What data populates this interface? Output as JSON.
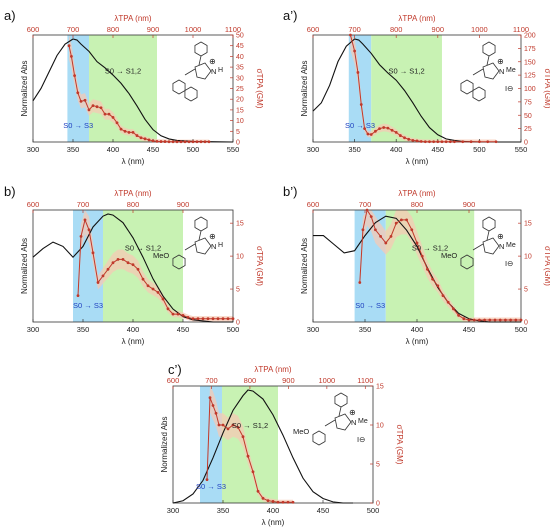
{
  "figure": {
    "title": "",
    "colors": {
      "absorption": "#111111",
      "tpa": "#c0392b",
      "tpa_band": "#f6c9b4",
      "s3_region": "#a9dcf5",
      "s12_region": "#c8f2b3",
      "s3_text": "#1f3fbf",
      "s12_text": "#222222",
      "guide_line": "#e8a7a7"
    }
  },
  "chart_data": [
    {
      "id": "a",
      "type": "line",
      "panel_label": "a)",
      "top_axis_label": "λTPA (nm)",
      "xlabel": "λ (nm)",
      "ylabel": "Normalized Abs",
      "y2label": "σTPA (GM)",
      "xlim": [
        300,
        550
      ],
      "x_ticks": [
        300,
        350,
        400,
        450,
        500,
        550
      ],
      "top_ticks": [
        600,
        700,
        800,
        900,
        1000,
        1100
      ],
      "ylim2": [
        0,
        50
      ],
      "y2_ticks": [
        0,
        5,
        10,
        15,
        20,
        25,
        30,
        35,
        40,
        45,
        50
      ],
      "regions": {
        "s3": [
          343,
          370
        ],
        "s12": [
          370,
          455
        ]
      },
      "region_labels": {
        "s3": "S0 → S3",
        "s12": "S0 → S1,2"
      },
      "absorption": {
        "x": [
          300,
          310,
          320,
          330,
          340,
          350,
          355,
          360,
          370,
          380,
          390,
          400,
          410,
          420,
          430,
          440,
          450,
          460,
          470,
          480,
          500,
          550
        ],
        "y": [
          0.4,
          0.52,
          0.68,
          0.84,
          0.95,
          1.0,
          0.99,
          0.95,
          0.88,
          0.78,
          0.72,
          0.65,
          0.57,
          0.47,
          0.35,
          0.22,
          0.12,
          0.06,
          0.03,
          0.015,
          0.005,
          0.0
        ]
      },
      "tpa": {
        "x": [
          345,
          348,
          352,
          356,
          360,
          365,
          370,
          375,
          380,
          385,
          390,
          395,
          400,
          405,
          410,
          415,
          420,
          425,
          430,
          435,
          440,
          445,
          450,
          455,
          460,
          465,
          470,
          475,
          480,
          485,
          490,
          495,
          500,
          505,
          510,
          515,
          520
        ],
        "y": [
          45,
          40,
          31,
          23,
          19,
          19.5,
          15,
          17,
          16.5,
          16,
          13,
          13,
          11.5,
          9,
          6,
          5,
          4.5,
          4.5,
          3,
          2,
          1.5,
          1,
          0.5,
          0.3,
          0.2,
          0.2,
          0.1,
          0.1,
          0.1,
          0.1,
          0.1,
          0.1,
          0.1,
          0.1,
          0.1,
          0.1,
          0.1
        ]
      },
      "molecule": {
        "nh": "N",
        "h": "H",
        "charge": "⊕",
        "counterion": ""
      }
    },
    {
      "id": "a2",
      "type": "line",
      "panel_label": "a’)",
      "top_axis_label": "λTPA (nm)",
      "xlabel": "λ (nm)",
      "ylabel": "Normalized Abs",
      "y2label": "σTPA (GM)",
      "xlim": [
        300,
        550
      ],
      "x_ticks": [
        300,
        350,
        400,
        450,
        500,
        550
      ],
      "top_ticks": [
        600,
        700,
        800,
        900,
        1000,
        1100
      ],
      "ylim2": [
        0,
        200
      ],
      "y2_ticks": [
        0,
        25,
        50,
        75,
        100,
        125,
        150,
        175,
        200
      ],
      "regions": {
        "s3": [
          343,
          370
        ],
        "s12": [
          370,
          455
        ]
      },
      "region_labels": {
        "s3": "S0 → S3",
        "s12": "S0 → S1,2"
      },
      "absorption": {
        "x": [
          300,
          310,
          320,
          330,
          340,
          350,
          355,
          360,
          370,
          380,
          390,
          400,
          410,
          420,
          430,
          440,
          450,
          460,
          470,
          480,
          500,
          550
        ],
        "y": [
          0.3,
          0.38,
          0.55,
          0.78,
          0.93,
          1.0,
          0.99,
          0.95,
          0.86,
          0.75,
          0.67,
          0.6,
          0.5,
          0.38,
          0.25,
          0.14,
          0.07,
          0.03,
          0.015,
          0.005,
          0.0,
          0.0
        ]
      },
      "tpa": {
        "x": [
          345,
          350,
          354,
          358,
          362,
          366,
          370,
          375,
          380,
          385,
          390,
          395,
          400,
          405,
          410,
          415,
          420,
          425,
          430,
          435,
          440,
          445,
          450,
          455,
          460,
          465,
          470,
          480,
          490,
          500,
          510,
          520
        ],
        "y": [
          200,
          170,
          130,
          70,
          25,
          15,
          14,
          20,
          25,
          27,
          26,
          22,
          18,
          12,
          8,
          5,
          3,
          2,
          1,
          0.5,
          0.5,
          0.5,
          0.5,
          0.5,
          0.5,
          0.5,
          0.5,
          0.5,
          0.5,
          0.5,
          0.5,
          0.5
        ]
      },
      "molecule": {
        "nh": "N",
        "h": "Me",
        "charge": "⊕",
        "counterion": "I⊖"
      }
    },
    {
      "id": "b",
      "type": "line",
      "panel_label": "b)",
      "top_axis_label": "λTPA (nm)",
      "xlabel": "λ (nm)",
      "ylabel": "Normalized Abs",
      "y2label": "σTPA (GM)",
      "xlim": [
        300,
        500
      ],
      "x_ticks": [
        300,
        350,
        400,
        450,
        500
      ],
      "top_ticks": [
        600,
        700,
        800,
        900
      ],
      "ylim2": [
        0,
        17
      ],
      "y2_ticks": [
        0,
        5,
        10,
        15
      ],
      "regions": {
        "s3": [
          340,
          370
        ],
        "s12": [
          370,
          450
        ]
      },
      "region_labels": {
        "s3": "S0 → S3",
        "s12": "S0 → S1,2"
      },
      "absorption": {
        "x": [
          300,
          310,
          320,
          330,
          340,
          350,
          360,
          370,
          375,
          380,
          390,
          400,
          410,
          420,
          430,
          440,
          450,
          460,
          470,
          480,
          500
        ],
        "y": [
          0.6,
          0.68,
          0.74,
          0.7,
          0.6,
          0.7,
          0.88,
          0.98,
          1.0,
          0.99,
          0.92,
          0.78,
          0.6,
          0.4,
          0.24,
          0.12,
          0.05,
          0.02,
          0.01,
          0.0,
          0.0
        ]
      },
      "tpa": {
        "x": [
          345,
          348,
          352,
          356,
          360,
          365,
          370,
          375,
          380,
          385,
          390,
          395,
          400,
          405,
          410,
          415,
          420,
          425,
          430,
          435,
          440,
          445,
          450,
          455,
          460,
          465,
          470,
          475,
          480,
          485,
          490,
          495,
          500
        ],
        "y": [
          4,
          13,
          15.5,
          14,
          10.5,
          6,
          7,
          8,
          9,
          9.5,
          9.5,
          9,
          8.7,
          8,
          6.5,
          5.5,
          5,
          4.5,
          3.5,
          2,
          1.2,
          1.2,
          1,
          0.7,
          0.5,
          0.5,
          0.5,
          0.5,
          0.5,
          0.5,
          0.5,
          0.5,
          0.5
        ]
      },
      "molecule": {
        "nh": "N",
        "h": "H",
        "charge": "⊕",
        "counterion": "",
        "substituent": "MeO"
      }
    },
    {
      "id": "b2",
      "type": "line",
      "panel_label": "b’)",
      "top_axis_label": "λTPA (nm)",
      "xlabel": "λ (nm)",
      "ylabel": "Normalized Abs",
      "y2label": "σTPA (GM)",
      "xlim": [
        300,
        500
      ],
      "x_ticks": [
        300,
        350,
        400,
        450,
        500
      ],
      "top_ticks": [
        600,
        700,
        800,
        900
      ],
      "ylim2": [
        0,
        17
      ],
      "y2_ticks": [
        0,
        5,
        10,
        15
      ],
      "regions": {
        "s3": [
          340,
          370
        ],
        "s12": [
          370,
          455
        ]
      },
      "region_labels": {
        "s3": "S0 → S3",
        "s12": "S0 → S1,2"
      },
      "absorption": {
        "x": [
          300,
          310,
          320,
          330,
          340,
          350,
          360,
          370,
          380,
          390,
          400,
          410,
          420,
          430,
          440,
          450,
          460,
          470,
          480,
          500
        ],
        "y": [
          0.8,
          0.8,
          0.72,
          0.64,
          0.66,
          0.8,
          0.92,
          0.98,
          0.96,
          0.85,
          0.7,
          0.5,
          0.32,
          0.18,
          0.08,
          0.03,
          0.01,
          0.0,
          0.0,
          0.0
        ]
      },
      "tpa": {
        "x": [
          345,
          348,
          352,
          356,
          360,
          365,
          370,
          375,
          380,
          385,
          390,
          395,
          400,
          405,
          410,
          415,
          420,
          425,
          430,
          435,
          440,
          445,
          450,
          455,
          460,
          465,
          470,
          475,
          480,
          485,
          490,
          495,
          500
        ],
        "y": [
          6,
          14,
          17,
          16,
          14,
          13,
          12,
          13,
          15,
          15.5,
          15.5,
          14,
          12,
          10,
          8,
          6.5,
          5.5,
          4,
          3,
          2,
          1,
          0.5,
          0.3,
          0.3,
          0.3,
          0.3,
          0.3,
          0.3,
          0.3,
          0.3,
          0.3,
          0.3,
          0.3
        ]
      },
      "molecule": {
        "nh": "N",
        "h": "Me",
        "charge": "⊕",
        "counterion": "I⊖",
        "substituent": "MeO"
      }
    },
    {
      "id": "c2",
      "type": "line",
      "panel_label": "c’)",
      "top_axis_label": "λTPA (nm)",
      "xlabel": "λ (nm)",
      "ylabel": "Normalized Abs",
      "y2label": "σTPA (GM)",
      "xlim": [
        300,
        500
      ],
      "x_ticks": [
        300,
        350,
        400,
        450,
        500
      ],
      "top_ticks": [
        600,
        700,
        800,
        900,
        1000,
        1100
      ],
      "top_xlim": [
        600,
        1120
      ],
      "ylim2": [
        0,
        15
      ],
      "y2_ticks": [
        0,
        5,
        10,
        15
      ],
      "regions": {
        "s3": [
          327,
          349
        ],
        "s12": [
          349,
          405
        ]
      },
      "region_labels": {
        "s3": "S0 → S3",
        "s12": "S0 → S1,2"
      },
      "absorption": {
        "x": [
          300,
          310,
          320,
          330,
          340,
          350,
          360,
          370,
          375,
          380,
          390,
          400,
          410,
          420,
          430,
          440,
          450,
          460,
          470,
          480
        ],
        "y": [
          0.0,
          0.02,
          0.08,
          0.2,
          0.4,
          0.62,
          0.82,
          0.95,
          1.0,
          0.99,
          0.92,
          0.78,
          0.6,
          0.4,
          0.22,
          0.1,
          0.04,
          0.01,
          0.0,
          0.0
        ]
      },
      "tpa": {
        "x": [
          334,
          337,
          340,
          343,
          346,
          350,
          355,
          360,
          365,
          370,
          375,
          380,
          385,
          390,
          395,
          400,
          405,
          410,
          415,
          420
        ],
        "y": [
          3,
          13.5,
          12.5,
          11.5,
          10,
          10,
          9.5,
          10,
          9.7,
          8.5,
          6,
          4,
          1.5,
          0.6,
          0.3,
          0.2,
          0.1,
          0.1,
          0.1,
          0.1
        ]
      },
      "molecule": {
        "nh": "N",
        "h": "Me",
        "charge": "⊕",
        "counterion": "I⊖",
        "substituent": "MeO"
      }
    }
  ]
}
